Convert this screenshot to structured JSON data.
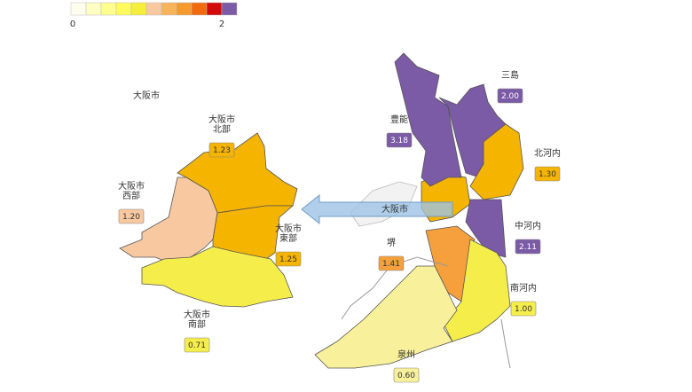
{
  "legend": {
    "colors": [
      "#fffff0",
      "#ffffc4",
      "#ffff90",
      "#fffb5c",
      "#f5ee3a",
      "#f8c8a0",
      "#f7b45a",
      "#f59a2c",
      "#f06a10",
      "#d20a0a",
      "#7b5aa6"
    ],
    "min_label": "0",
    "max_label": "2"
  },
  "city_title": "大阪市",
  "city_label": "大阪市",
  "regions": [
    {
      "name_lines": [
        "大阪市",
        "北部"
      ],
      "value": "1.23",
      "color": "#f5b400"
    },
    {
      "name_lines": [
        "大阪市",
        "西部"
      ],
      "value": "1.20",
      "color": "#f8c8a0"
    },
    {
      "name_lines": [
        "大阪市",
        "東部"
      ],
      "value": "1.25",
      "color": "#f5b400"
    },
    {
      "name_lines": [
        "大阪市",
        "南部"
      ],
      "value": "0.71",
      "color": "#f5ee4a"
    },
    {
      "name_lines": [
        "三島"
      ],
      "value": "2.00",
      "color": "#7b5aa6"
    },
    {
      "name_lines": [
        "豊能"
      ],
      "value": "3.18",
      "color": "#7b5aa6"
    },
    {
      "name_lines": [
        "北河内"
      ],
      "value": "1.30",
      "color": "#f5b400"
    },
    {
      "name_lines": [
        "中河内"
      ],
      "value": "2.11",
      "color": "#7b5aa6"
    },
    {
      "name_lines": [
        "堺"
      ],
      "value": "1.41",
      "color": "#f5a03c"
    },
    {
      "name_lines": [
        "南河内"
      ],
      "value": "1.00",
      "color": "#f5ee4a"
    },
    {
      "name_lines": [
        "泉州"
      ],
      "value": "0.60",
      "color": "#f8f09a"
    }
  ]
}
